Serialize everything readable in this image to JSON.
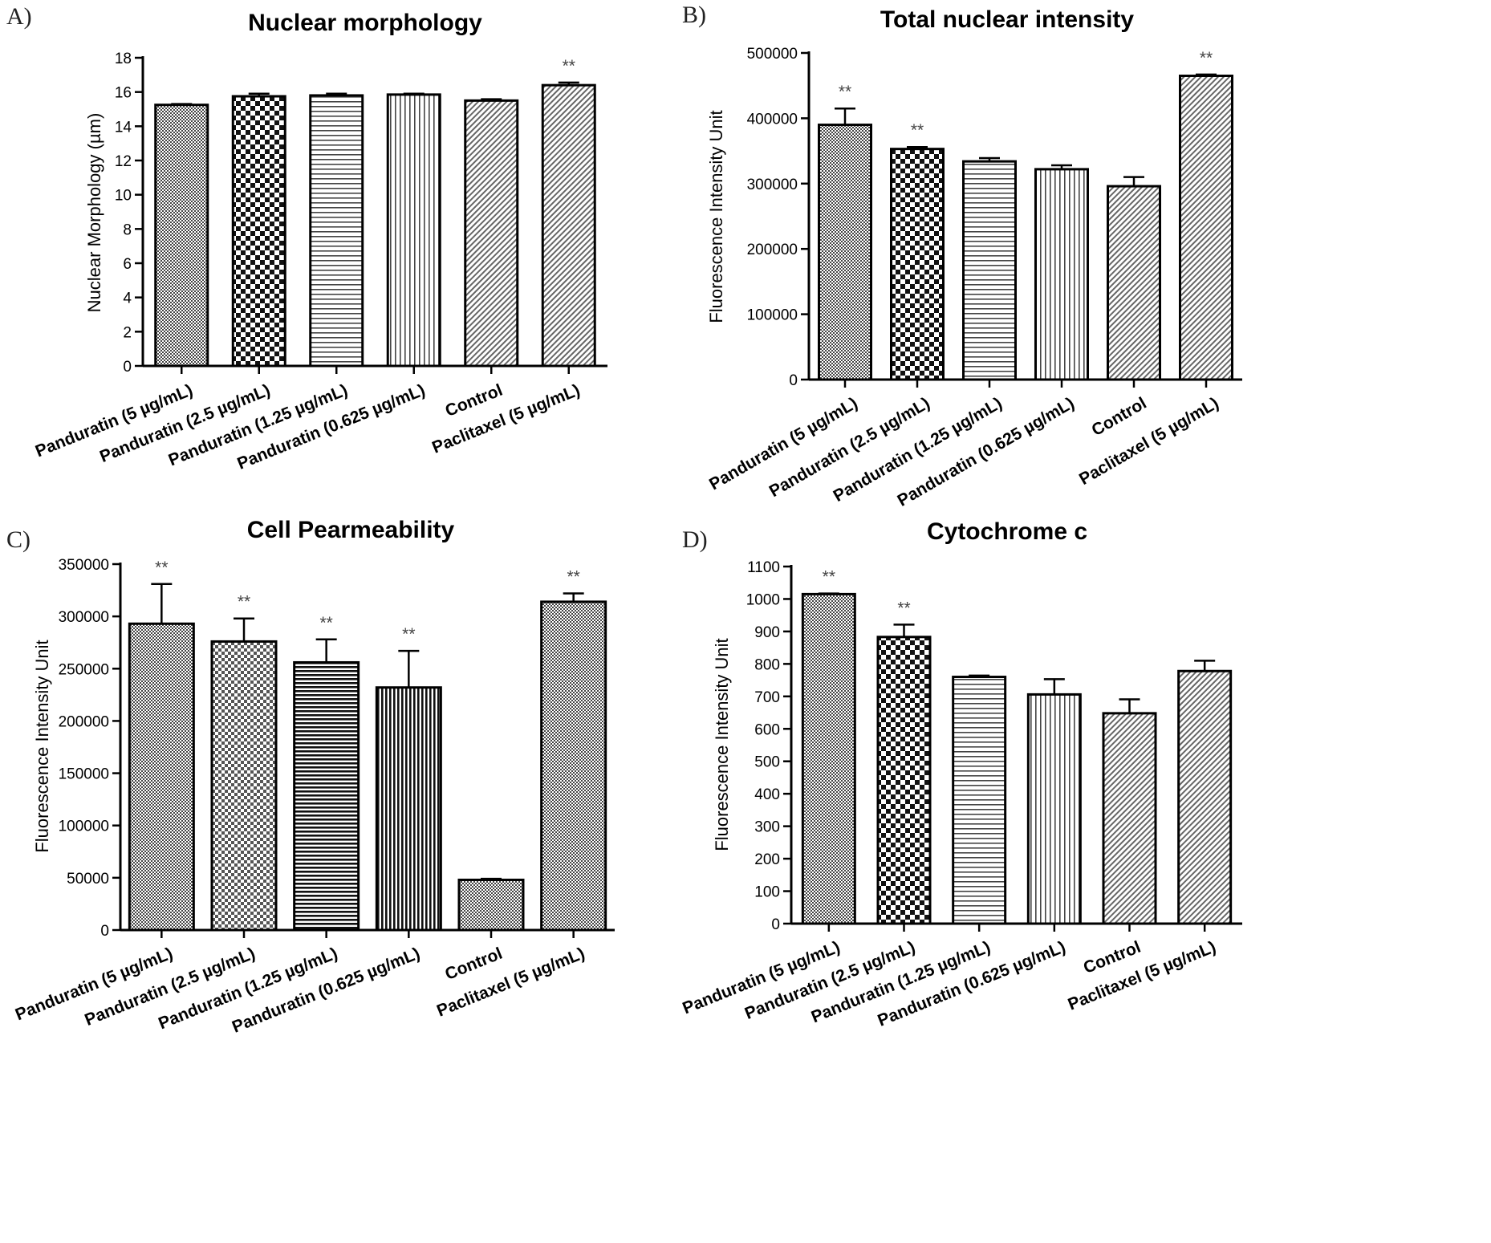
{
  "chart_data": [
    {
      "panel": "A)",
      "type": "bar",
      "title": "Nuclear morphology",
      "xlabel": "",
      "ylabel": "Nuclear Morphology (µm)",
      "ylim": [
        0,
        18
      ],
      "yticks": [
        "0",
        "2",
        "4",
        "6",
        "8",
        "10",
        "12",
        "14",
        "16",
        "18"
      ],
      "ytick_values": [
        0,
        2,
        4,
        6,
        8,
        10,
        12,
        14,
        16,
        18
      ],
      "categories": [
        "Panduratin (5 µg/mL)",
        "Panduratin (2.5 µg/mL)",
        "Panduratin (1.25 µg/mL)",
        "Panduratin (0.625 µg/mL)",
        "Control",
        "Paclitaxel (5 µg/mL)"
      ],
      "values": [
        15.25,
        15.75,
        15.8,
        15.85,
        15.5,
        16.4
      ],
      "errors": [
        0.05,
        0.15,
        0.1,
        0.05,
        0.08,
        0.15
      ],
      "significance": [
        "",
        "",
        "",
        "",
        "",
        "**"
      ],
      "patterns": [
        "fine-check",
        "checker",
        "hlines",
        "vlines",
        "diag",
        "diag"
      ]
    },
    {
      "panel": "B)",
      "type": "bar",
      "title": "Total nuclear intensity",
      "xlabel": "",
      "ylabel": "Fluorescence Intensity Unit",
      "ylim": [
        0,
        500000
      ],
      "yticks": [
        "0",
        "100000",
        "200000",
        "300000",
        "400000",
        "500000"
      ],
      "ytick_values": [
        0,
        100000,
        200000,
        300000,
        400000,
        500000
      ],
      "categories": [
        "Panduratin (5 µg/mL)",
        "Panduratin (2.5 µg/mL)",
        "Panduratin (1.25 µg/mL)",
        "Panduratin (0.625 µg/mL)",
        "Control",
        "Paclitaxel (5 µg/mL)"
      ],
      "values": [
        390000,
        353000,
        334000,
        322000,
        296000,
        465000
      ],
      "errors": [
        25000,
        3000,
        5000,
        6000,
        14000,
        2000
      ],
      "significance": [
        "**",
        "**",
        "",
        "",
        "",
        "**"
      ],
      "patterns": [
        "fine-check",
        "checker",
        "hlines",
        "vlines",
        "diag",
        "diag"
      ]
    },
    {
      "panel": "C)",
      "type": "bar",
      "title": "Cell Pearmeability",
      "xlabel": "",
      "ylabel": "Fluorescence Intensity Unit",
      "ylim": [
        0,
        350000
      ],
      "yticks": [
        "0",
        "50000",
        "100000",
        "150000",
        "200000",
        "250000",
        "300000",
        "350000"
      ],
      "ytick_values": [
        0,
        50000,
        100000,
        150000,
        200000,
        250000,
        300000,
        350000
      ],
      "categories": [
        "Panduratin (5 µg/mL)",
        "Panduratin (2.5 µg/mL)",
        "Panduratin (1.25 µg/mL)",
        "Panduratin (0.625 µg/mL)",
        "Control",
        "Paclitaxel (5 µg/mL)"
      ],
      "values": [
        293000,
        276000,
        256000,
        232000,
        48000,
        314000
      ],
      "errors": [
        38000,
        22000,
        22000,
        35000,
        1000,
        8000
      ],
      "significance": [
        "**",
        "**",
        "**",
        "**",
        "",
        "**"
      ],
      "patterns": [
        "fine-check",
        "dots",
        "hlines-dense",
        "vlines-dense",
        "fine-check",
        "fine-check"
      ]
    },
    {
      "panel": "D)",
      "type": "bar",
      "title": "Cytochrome c",
      "xlabel": "",
      "ylabel": "Fluorescence Intensity Unit",
      "ylim": [
        0,
        1100
      ],
      "yticks": [
        "0",
        "100",
        "200",
        "300",
        "400",
        "500",
        "600",
        "700",
        "800",
        "900",
        "1000",
        "1100"
      ],
      "ytick_values": [
        0,
        100,
        200,
        300,
        400,
        500,
        600,
        700,
        800,
        900,
        1000,
        1100
      ],
      "categories": [
        "Panduratin (5 µg/mL)",
        "Panduratin (2.5 µg/mL)",
        "Panduratin (1.25 µg/mL)",
        "Panduratin (0.625 µg/mL)",
        "Control",
        "Paclitaxel (5 µg/mL)"
      ],
      "values": [
        1015,
        883,
        760,
        706,
        648,
        778
      ],
      "errors": [
        2,
        38,
        4,
        47,
        43,
        32
      ],
      "significance": [
        "**",
        "**",
        "",
        "",
        "",
        ""
      ],
      "patterns": [
        "fine-check",
        "checker",
        "hlines",
        "vlines",
        "diag",
        "diag"
      ]
    }
  ]
}
